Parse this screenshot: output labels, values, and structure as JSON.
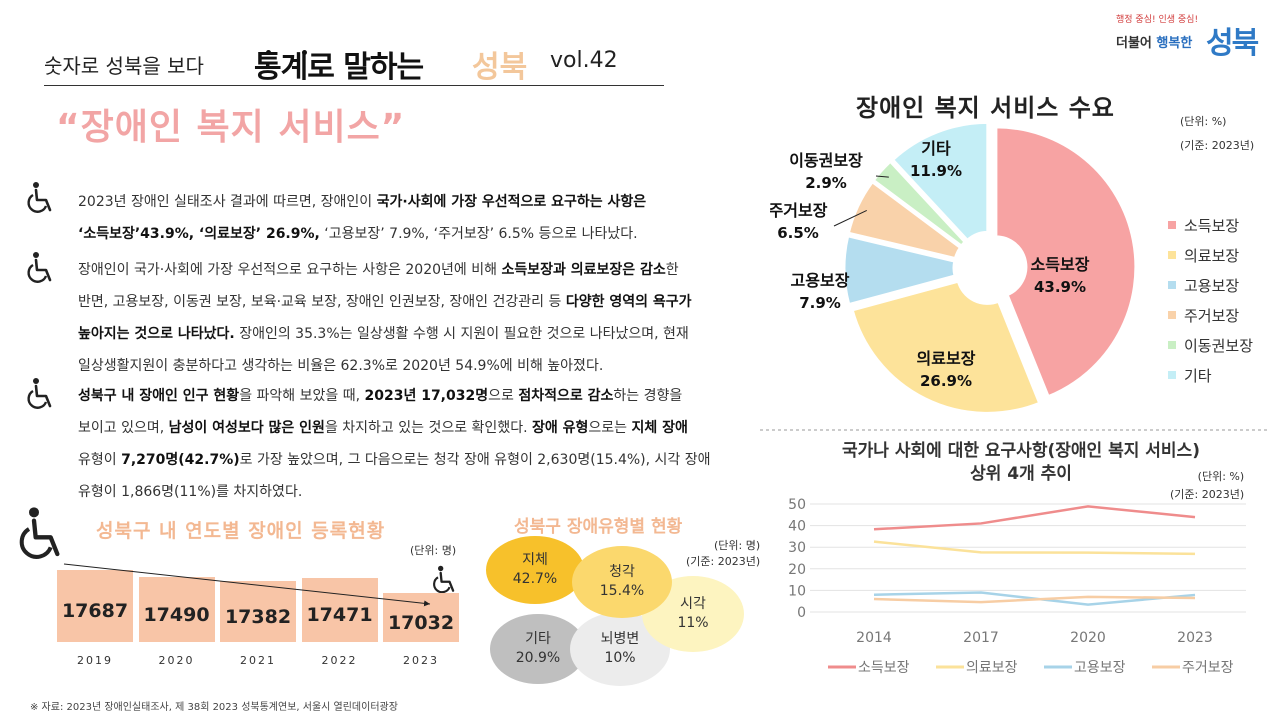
{
  "header": {
    "subtitle": "숫자로 성북을 보다",
    "title_main": "통계로 말하는",
    "title_accent": "성북",
    "volume": "vol.42"
  },
  "topic": "“장애인 복지 서비스”",
  "logo": {
    "tagline_a": "행정 중심!",
    "tagline_b": "인생 중심!",
    "line1_a": "더불어",
    "line1_b": "행복한",
    "name": "성북"
  },
  "paragraphs": [
    {
      "icon": "wheelchair-icon",
      "segments": [
        {
          "t": "2023년 장애인 실태조사 결과에 따르면, 장애인이 ",
          "b": false
        },
        {
          "t": "국가·사회에 가장 우선적으로 요구하는 사항은",
          "b": true
        },
        {
          "br": true
        },
        {
          "t": "‘소득보장’43.9%, ‘의료보장’ 26.9%,",
          "b": true
        },
        {
          "t": " ‘고용보장’ 7.9%, ‘주거보장’ 6.5% 등으로 나타났다.",
          "b": false
        }
      ]
    },
    {
      "icon": "wheelchair-icon",
      "segments": [
        {
          "t": "장애인이 국가·사회에 가장 우선적으로 요구하는 사항은 2020년에 비해 ",
          "b": false
        },
        {
          "t": "소득보장과 의료보장은 감소",
          "b": true
        },
        {
          "t": "한",
          "b": false
        },
        {
          "br": true
        },
        {
          "t": "반면, 고용보장, 이동권 보장, 보육·교육 보장, 장애인 인권보장, 장애인 건강관리 등 ",
          "b": false
        },
        {
          "t": "다양한 영역의 욕구가",
          "b": true
        },
        {
          "br": true
        },
        {
          "t": "높아지는 것으로 나타났다.",
          "b": true
        },
        {
          "t": " 장애인의 35.3%는 일상생활 수행 시 지원이 필요한 것으로 나타났으며, 현재",
          "b": false
        },
        {
          "br": true
        },
        {
          "t": "일상생활지원이 충분하다고 생각하는 비율은 62.3%로 2020년 54.9%에 비해 높아졌다.",
          "b": false
        }
      ]
    },
    {
      "icon": "wheelchair-icon",
      "segments": [
        {
          "t": "성북구 내 장애인 인구 현황",
          "b": true
        },
        {
          "t": "을 파악해 보았을 때, ",
          "b": false
        },
        {
          "t": "2023년 17,032명",
          "b": true
        },
        {
          "t": "으로 ",
          "b": false
        },
        {
          "t": "점차적으로 감소",
          "b": true
        },
        {
          "t": "하는 경향을",
          "b": false
        },
        {
          "br": true
        },
        {
          "t": "보이고 있으며, ",
          "b": false
        },
        {
          "t": "남성이 여성보다 많은 인원",
          "b": true
        },
        {
          "t": "을 차지하고 있는 것으로 확인했다. ",
          "b": false
        },
        {
          "t": "장애 유형",
          "b": true
        },
        {
          "t": "으로는 ",
          "b": false
        },
        {
          "t": "지체 장애",
          "b": true
        },
        {
          "br": true
        },
        {
          "t": "유형이 ",
          "b": false
        },
        {
          "t": "7,270명(42.7%)",
          "b": true
        },
        {
          "t": "로 가장 높았으며, 그 다음으로는 청각 장애 유형이 2,630명(15.4%), 시각 장애",
          "b": false
        },
        {
          "br": true
        },
        {
          "t": "유형이 1,866명(11%)를 차지하였다.",
          "b": false
        }
      ]
    }
  ],
  "registration": {
    "title": "성북구 내 연도별 장애인 등록현황",
    "unit": "(단위: 명)",
    "trend_icon": "wheelchair-icon",
    "chart_data": {
      "type": "bar",
      "categories": [
        "2019",
        "2020",
        "2021",
        "2022",
        "2023"
      ],
      "values": [
        17687,
        17490,
        17382,
        17471,
        17032
      ],
      "labels": [
        "17687",
        "17490",
        "17382",
        "17471",
        "17032"
      ],
      "color": "#f8c5a7"
    }
  },
  "types": {
    "title": "성북구 장애유형별 현황",
    "unit": "(단위: 명)",
    "basis": "(기준: 2023년)",
    "items": [
      {
        "name": "지체",
        "pct": "42.7%",
        "color": "#f7c12b"
      },
      {
        "name": "청각",
        "pct": "15.4%",
        "color": "#fbd86d"
      },
      {
        "name": "시각",
        "pct": "11%",
        "color": "#fdf4c0"
      },
      {
        "name": "기타",
        "pct": "20.9%",
        "color": "#bfbfbf"
      },
      {
        "name": "뇌병변",
        "pct": "10%",
        "color": "#ececec"
      }
    ]
  },
  "pie": {
    "title": "장애인 복지 서비스 수요",
    "unit": "(단위: %)",
    "basis": "(기준: 2023년)",
    "chart_data": {
      "type": "pie",
      "categories": [
        "소득보장",
        "의료보장",
        "고용보장",
        "주거보장",
        "이동권보장",
        "기타"
      ],
      "values": [
        43.9,
        26.9,
        7.9,
        6.5,
        2.9,
        11.9
      ],
      "labels": [
        "43.9%",
        "26.9%",
        "7.9%",
        "6.5%",
        "2.9%",
        "11.9%"
      ],
      "colors": [
        "#f7a3a3",
        "#fde39a",
        "#b4ddef",
        "#f9d2aa",
        "#c9efc4",
        "#c4eef6"
      ],
      "legend": "right"
    }
  },
  "trend": {
    "title_line1": "국가나 사회에 대한 요구사항(장애인 복지 서비스)",
    "title_line2": "상위 4개 추이",
    "unit": "(단위: %)",
    "basis": "(기준: 2023년)",
    "chart_data": {
      "type": "line",
      "x": [
        "2014",
        "2017",
        "2020",
        "2023"
      ],
      "yticks": [
        "0",
        "10",
        "20",
        "30",
        "40",
        "50"
      ],
      "ylim": [
        0,
        50
      ],
      "grid": true,
      "legend": "bottom",
      "series": [
        {
          "name": "소득보장",
          "values": [
            38.3,
            41.0,
            48.9,
            43.9
          ],
          "color": "#ef8c8c"
        },
        {
          "name": "의료보장",
          "values": [
            32.6,
            27.6,
            27.5,
            26.9
          ],
          "color": "#fbe29a"
        },
        {
          "name": "고용보장",
          "values": [
            8.0,
            9.0,
            3.4,
            7.9
          ],
          "color": "#a7d3e8"
        },
        {
          "name": "주거보장",
          "values": [
            6.0,
            4.6,
            7.0,
            6.5
          ],
          "color": "#f7cda4"
        }
      ]
    }
  },
  "source": "※ 자료: 2023년 장애인실태조사, 제 38회 2023 성북통계연보, 서울시 열린데이터광장"
}
